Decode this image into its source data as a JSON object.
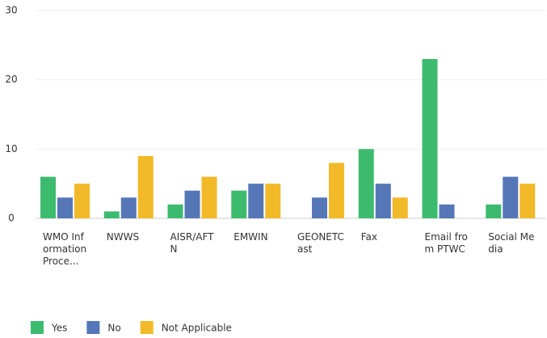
{
  "chart_data": {
    "type": "bar",
    "categories": [
      "WMO Information Proce...",
      "NWWS",
      "AISR/AFTN",
      "EMWIN",
      "GEONETCast",
      "Fax",
      "Email from PTWC",
      "Social Media"
    ],
    "series": [
      {
        "name": "Yes",
        "color": "#3cbb6e",
        "values": [
          6,
          1,
          2,
          4,
          0,
          10,
          23,
          2
        ]
      },
      {
        "name": "No",
        "color": "#5577b8",
        "values": [
          3,
          3,
          4,
          5,
          3,
          5,
          2,
          6
        ]
      },
      {
        "name": "Not Applicable",
        "color": "#f2b928",
        "values": [
          5,
          9,
          6,
          5,
          8,
          3,
          0,
          5
        ]
      }
    ],
    "ylim": [
      0,
      30
    ],
    "yticks": [
      0,
      10,
      20,
      30
    ],
    "grid": true
  }
}
